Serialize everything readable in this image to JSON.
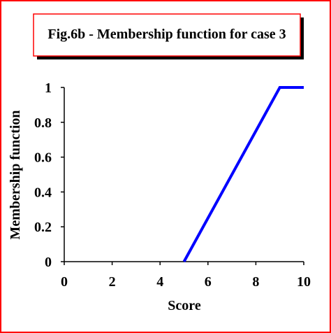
{
  "chart_data": {
    "type": "line",
    "title": "Fig.6b - Membership function for case 3",
    "x_label": "Score",
    "y_label": "Membership function",
    "xlim": [
      0,
      10
    ],
    "xticks": [
      0,
      2,
      4,
      6,
      8,
      10
    ],
    "ylim": [
      0,
      1
    ],
    "yticks": [
      0,
      0.2,
      0.4,
      0.6,
      0.8,
      1
    ],
    "series": [
      {
        "color": "#0000ff",
        "x": [
          5,
          9,
          10
        ],
        "values": [
          0,
          1,
          1
        ]
      }
    ]
  }
}
